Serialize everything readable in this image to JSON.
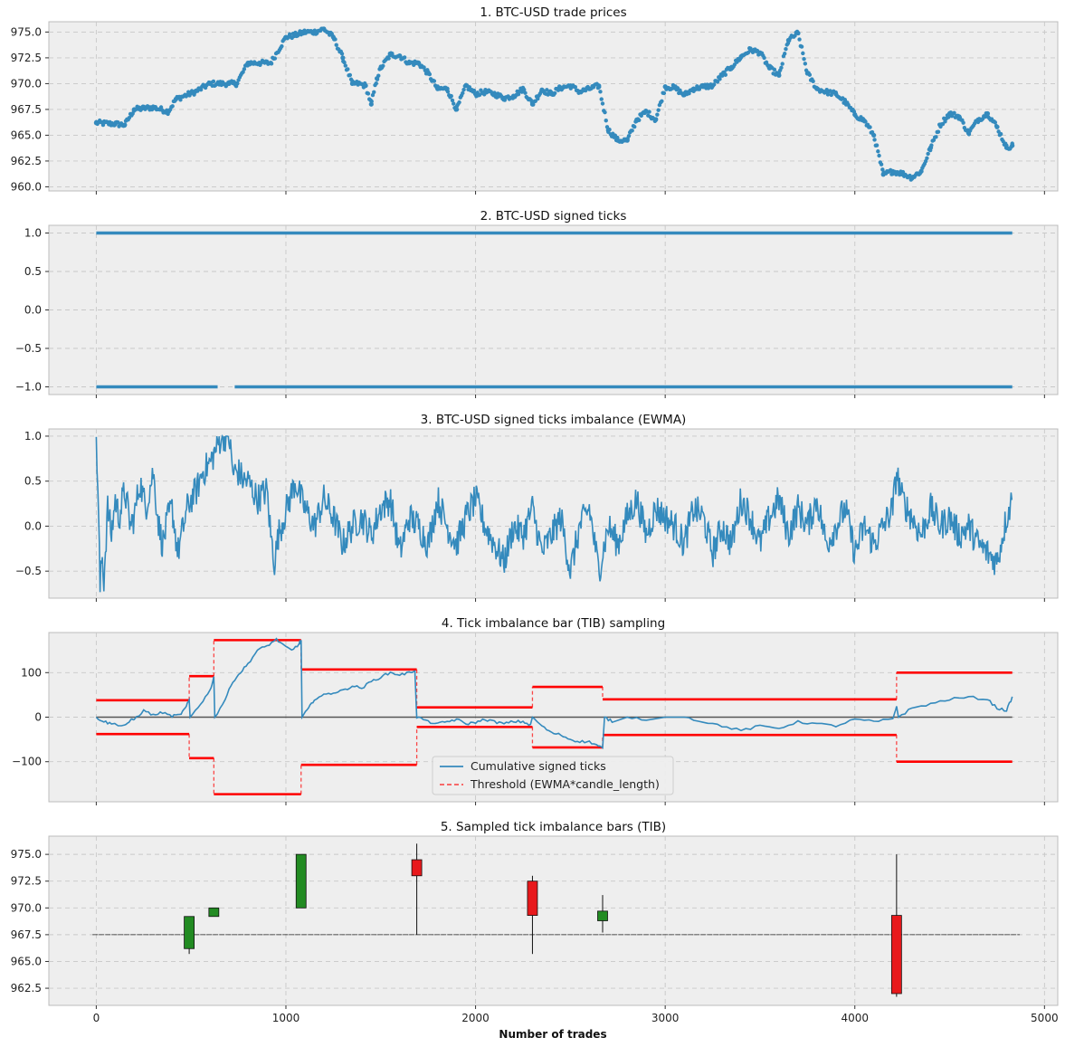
{
  "xaxis": {
    "label": "Number of trades",
    "range": [
      -250,
      5070
    ],
    "ticks": [
      0,
      1000,
      2000,
      3000,
      4000,
      5000
    ],
    "tick_labels": [
      "0",
      "1000",
      "2000",
      "3000",
      "4000",
      "5000"
    ]
  },
  "colors": {
    "series": "#348abd",
    "threshold": "#ff0000",
    "zero_line": "#555555",
    "bull": "#228b22",
    "bear": "#e8191c",
    "panel_bg": "#eeeeee"
  },
  "chart_data": [
    {
      "type": "scatter",
      "title": "1. BTC-USD trade prices",
      "ylim": [
        959.6,
        976.0
      ],
      "yticks": [
        960.0,
        962.5,
        965.0,
        967.5,
        970.0,
        972.5,
        975.0
      ],
      "ytick_labels": [
        "960.0",
        "962.5",
        "965.0",
        "967.5",
        "970.0",
        "972.5",
        "975.0"
      ],
      "grid": true,
      "x": [
        0,
        100,
        150,
        200,
        300,
        380,
        420,
        520,
        600,
        700,
        740,
        800,
        860,
        920,
        1000,
        1050,
        1100,
        1150,
        1200,
        1250,
        1300,
        1350,
        1380,
        1420,
        1450,
        1480,
        1500,
        1550,
        1600,
        1650,
        1700,
        1750,
        1800,
        1850,
        1900,
        1950,
        2000,
        2050,
        2100,
        2150,
        2200,
        2250,
        2300,
        2350,
        2400,
        2450,
        2500,
        2550,
        2600,
        2650,
        2700,
        2750,
        2800,
        2850,
        2900,
        2950,
        3000,
        3050,
        3100,
        3150,
        3200,
        3250,
        3300,
        3350,
        3400,
        3450,
        3500,
        3550,
        3600,
        3650,
        3700,
        3750,
        3800,
        3850,
        3900,
        3950,
        4000,
        4050,
        4100,
        4150,
        4200,
        4250,
        4300,
        4350,
        4400,
        4450,
        4500,
        4550,
        4600,
        4650,
        4700,
        4750,
        4800,
        4830
      ],
      "values": [
        966.2,
        966.1,
        966.0,
        967.5,
        967.7,
        967.3,
        968.5,
        969.2,
        970.0,
        970.0,
        970.0,
        972.0,
        972.0,
        972.0,
        974.5,
        974.7,
        975.0,
        975.0,
        975.3,
        974.5,
        972.5,
        970.0,
        970.0,
        969.8,
        968.0,
        970.5,
        971.5,
        972.8,
        972.7,
        972.0,
        972.0,
        971.0,
        969.5,
        969.5,
        967.5,
        969.8,
        969.0,
        969.2,
        969.0,
        968.6,
        968.8,
        969.5,
        968.0,
        969.4,
        969.0,
        969.6,
        969.8,
        969.2,
        969.5,
        969.8,
        965.5,
        964.5,
        964.5,
        966.5,
        967.3,
        966.5,
        969.7,
        969.6,
        968.9,
        969.5,
        969.7,
        969.8,
        970.8,
        971.6,
        972.6,
        973.3,
        973.0,
        971.5,
        970.8,
        974.2,
        974.9,
        971.0,
        969.5,
        969.2,
        969.0,
        968.2,
        967.0,
        966.4,
        965.0,
        961.2,
        961.5,
        961.3,
        960.9,
        961.5,
        963.8,
        966.0,
        967.1,
        966.8,
        965.2,
        966.5,
        967.1,
        965.8,
        963.8,
        964.0
      ],
      "series": [
        {
          "name": "",
          "marker": "o"
        }
      ]
    },
    {
      "type": "scatter",
      "title": "2. BTC-USD signed ticks",
      "ylim": [
        -1.1,
        1.1
      ],
      "yticks": [
        -1.0,
        -0.5,
        0.0,
        0.5,
        1.0
      ],
      "ytick_labels": [
        "−1.0",
        "−0.5",
        "0.0",
        "0.5",
        "1.0"
      ],
      "grid": true,
      "x_range": [
        0,
        4830
      ],
      "levels": [
        1.0,
        -1.0
      ],
      "gaps_at_minus_one": [
        [
          640,
          730
        ]
      ]
    },
    {
      "type": "line",
      "title": "3. BTC-USD signed ticks imbalance (EWMA)",
      "ylim": [
        -0.8,
        1.08
      ],
      "yticks": [
        -0.5,
        0.0,
        0.5,
        1.0
      ],
      "ytick_labels": [
        "−0.5",
        "0.0",
        "0.5",
        "1.0"
      ],
      "grid": true,
      "x": [
        0,
        10,
        20,
        30,
        40,
        60,
        80,
        100,
        120,
        150,
        180,
        200,
        230,
        260,
        300,
        330,
        350,
        380,
        400,
        430,
        460,
        480,
        500,
        530,
        560,
        600,
        640,
        660,
        700,
        720,
        750,
        780,
        800,
        850,
        900,
        920,
        940,
        960,
        990,
        1020,
        1050,
        1080,
        1100,
        1150,
        1200,
        1250,
        1300,
        1350,
        1400,
        1450,
        1500,
        1550,
        1600,
        1650,
        1700,
        1750,
        1800,
        1850,
        1900,
        1950,
        2000,
        2050,
        2100,
        2150,
        2200,
        2250,
        2300,
        2350,
        2400,
        2450,
        2500,
        2550,
        2600,
        2650,
        2700,
        2750,
        2800,
        2850,
        2900,
        2950,
        3000,
        3050,
        3100,
        3150,
        3200,
        3250,
        3300,
        3350,
        3400,
        3450,
        3500,
        3550,
        3600,
        3650,
        3700,
        3750,
        3800,
        3850,
        3900,
        3950,
        4000,
        4050,
        4100,
        4150,
        4200,
        4220,
        4250,
        4300,
        4350,
        4400,
        4450,
        4500,
        4550,
        4600,
        4650,
        4700,
        4750,
        4800,
        4830
      ],
      "values": [
        1.0,
        0.3,
        -0.7,
        -0.3,
        -0.6,
        0.2,
        -0.1,
        0.3,
        0.1,
        0.4,
        0.0,
        0.1,
        0.5,
        0.2,
        0.6,
        0.0,
        -0.2,
        0.1,
        0.2,
        -0.3,
        0.0,
        0.2,
        0.3,
        0.4,
        0.6,
        0.7,
        0.9,
        1.0,
        1.0,
        0.6,
        0.6,
        0.5,
        0.5,
        0.3,
        0.4,
        -0.1,
        -0.4,
        -0.1,
        0.1,
        0.3,
        0.5,
        0.3,
        0.2,
        0.0,
        0.3,
        0.1,
        -0.2,
        0.0,
        0.1,
        -0.1,
        0.2,
        0.3,
        -0.3,
        0.1,
        0.0,
        -0.2,
        0.3,
        0.0,
        -0.2,
        0.1,
        0.3,
        0.0,
        -0.2,
        -0.4,
        0.0,
        -0.1,
        0.2,
        -0.3,
        -0.1,
        0.1,
        -0.5,
        0.0,
        0.2,
        -0.5,
        0.0,
        -0.2,
        0.1,
        0.3,
        -0.1,
        0.2,
        0.1,
        0.0,
        -0.2,
        0.2,
        0.1,
        -0.3,
        0.0,
        -0.2,
        0.3,
        0.1,
        -0.2,
        0.1,
        0.3,
        -0.1,
        0.2,
        0.0,
        0.3,
        -0.2,
        0.0,
        0.2,
        -0.3,
        0.0,
        -0.2,
        0.0,
        0.2,
        0.6,
        0.3,
        0.1,
        -0.1,
        0.2,
        0.0,
        0.1,
        -0.1,
        0.0,
        -0.2,
        -0.3,
        -0.4,
        0.1,
        0.3
      ],
      "series": [
        {
          "name": ""
        }
      ]
    },
    {
      "type": "line",
      "title": "4. Tick imbalance bar (TIB) sampling",
      "ylim": [
        -190,
        190
      ],
      "yticks": [
        -100,
        0,
        100
      ],
      "ytick_labels": [
        "−100",
        "0",
        "100"
      ],
      "grid": true,
      "legend": "lower-center",
      "cumulative": {
        "name": "Cumulative signed ticks",
        "x": [
          0,
          40,
          80,
          150,
          180,
          200,
          250,
          300,
          350,
          400,
          440,
          470,
          490,
          495,
          550,
          600,
          620,
          625,
          680,
          720,
          760,
          800,
          850,
          900,
          950,
          990,
          1030,
          1070,
          1080,
          1085,
          1120,
          1150,
          1200,
          1250,
          1300,
          1350,
          1400,
          1450,
          1500,
          1550,
          1600,
          1650,
          1680,
          1690,
          1700,
          1750,
          1800,
          1850,
          1900,
          1950,
          2000,
          2050,
          2100,
          2150,
          2200,
          2250,
          2290,
          2300,
          2350,
          2400,
          2450,
          2500,
          2550,
          2600,
          2650,
          2670,
          2680,
          2720,
          2800,
          2900,
          3000,
          3100,
          3200,
          3300,
          3400,
          3500,
          3600,
          3700,
          3800,
          3900,
          4000,
          4100,
          4200,
          4220,
          4230,
          4300,
          4400,
          4500,
          4600,
          4700,
          4750,
          4800,
          4830
        ],
        "values": [
          0,
          -10,
          -15,
          -18,
          -8,
          -5,
          15,
          5,
          10,
          2,
          5,
          20,
          38,
          0,
          30,
          60,
          90,
          0,
          40,
          80,
          100,
          120,
          150,
          160,
          175,
          160,
          150,
          165,
          172,
          0,
          20,
          40,
          50,
          55,
          60,
          70,
          65,
          80,
          90,
          100,
          95,
          100,
          105,
          -3,
          0,
          -10,
          -15,
          -10,
          -5,
          -15,
          -12,
          -5,
          -10,
          -15,
          -10,
          -10,
          -18,
          0,
          -20,
          -35,
          -40,
          -50,
          -55,
          -55,
          -65,
          -70,
          0,
          -10,
          0,
          -5,
          0,
          0,
          -10,
          -20,
          -30,
          -20,
          -25,
          -10,
          -15,
          -20,
          -5,
          -10,
          -5,
          25,
          0,
          20,
          30,
          40,
          45,
          40,
          20,
          15,
          45
        ]
      },
      "threshold": {
        "name": "Threshold (EWMA*candle_length)",
        "segments": [
          {
            "x0": 0,
            "x1": 490,
            "value": 38
          },
          {
            "x0": 490,
            "x1": 620,
            "value": 92
          },
          {
            "x0": 620,
            "x1": 1080,
            "value": 173
          },
          {
            "x0": 1080,
            "x1": 1690,
            "value": 107
          },
          {
            "x0": 1690,
            "x1": 2300,
            "value": 22
          },
          {
            "x0": 2300,
            "x1": 2670,
            "value": 68
          },
          {
            "x0": 2670,
            "x1": 4220,
            "value": 40
          },
          {
            "x0": 4220,
            "x1": 4830,
            "value": 100
          }
        ]
      }
    },
    {
      "type": "candlestick",
      "title": "5. Sampled tick imbalance bars (TIB)",
      "xlabel": "Number of trades",
      "ylim": [
        960.9,
        976.7
      ],
      "yticks": [
        962.5,
        965.0,
        967.5,
        970.0,
        972.5,
        975.0
      ],
      "ytick_labels": [
        "962.5",
        "965.0",
        "967.5",
        "970.0",
        "972.5",
        "975.0"
      ],
      "grid": true,
      "baseline": {
        "x0": -20,
        "x1": 4870,
        "value": 967.5
      },
      "candles": [
        {
          "x": 490,
          "open": 966.2,
          "close": 969.2,
          "high": 969.2,
          "low": 965.7
        },
        {
          "x": 620,
          "open": 969.2,
          "close": 970.0,
          "high": 970.0,
          "low": 969.2
        },
        {
          "x": 1080,
          "open": 970.0,
          "close": 975.0,
          "high": 975.0,
          "low": 970.0
        },
        {
          "x": 1690,
          "open": 974.5,
          "close": 973.0,
          "high": 976.0,
          "low": 967.5
        },
        {
          "x": 2300,
          "open": 972.5,
          "close": 969.3,
          "high": 973.0,
          "low": 965.7
        },
        {
          "x": 2670,
          "open": 968.8,
          "close": 969.7,
          "high": 971.2,
          "low": 967.7
        },
        {
          "x": 4220,
          "open": 969.3,
          "close": 962.0,
          "high": 975.0,
          "low": 961.7
        }
      ]
    }
  ]
}
